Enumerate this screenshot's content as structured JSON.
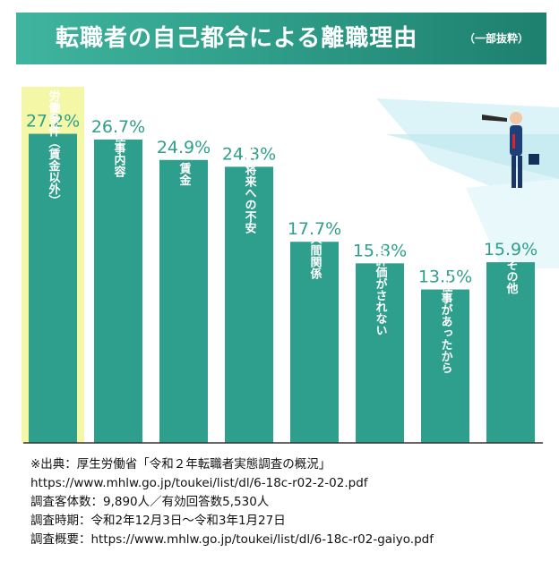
{
  "title": {
    "main": "転職者の自己都合による離職理由",
    "note": "（一部抜粋）"
  },
  "colors": {
    "bar": "#2e9f8c",
    "highlight": "#f4f7a6",
    "banner": "#2f9f8a",
    "label": "#ffffff",
    "axis": "#333333"
  },
  "chart_data": {
    "type": "bar",
    "categories": [
      "労働条件（賃金以外）",
      "仕事内容",
      "賃金",
      "会社の将来への不安",
      "人間関係",
      "正当な評価がされない",
      "他によい仕事があったから",
      "その他"
    ],
    "values": [
      27.2,
      26.7,
      24.9,
      24.3,
      17.7,
      15.8,
      13.5,
      15.9
    ],
    "value_labels": [
      "27.2%",
      "26.7%",
      "24.9%",
      "24.3%",
      "17.7%",
      "15.8%",
      "13.5%",
      "15.9%"
    ],
    "unit": "%",
    "highlight_index": 0,
    "ylim": [
      0,
      35
    ],
    "grid": false,
    "legend": "none"
  },
  "footnotes": [
    "※出典：厚生労働省「令和２年転職者実態調査の概況」",
    "https://www.mhlw.go.jp/toukei/list/dl/6-18c-r02-2-02.pdf",
    "調査客体数：9,890人／有効回答数5,530人",
    "調査時期：令和2年12月3日～令和3年1月27日",
    "調査概要：https://www.mhlw.go.jp/toukei/list/dl/6-18c-r02-gaiyo.pdf"
  ]
}
